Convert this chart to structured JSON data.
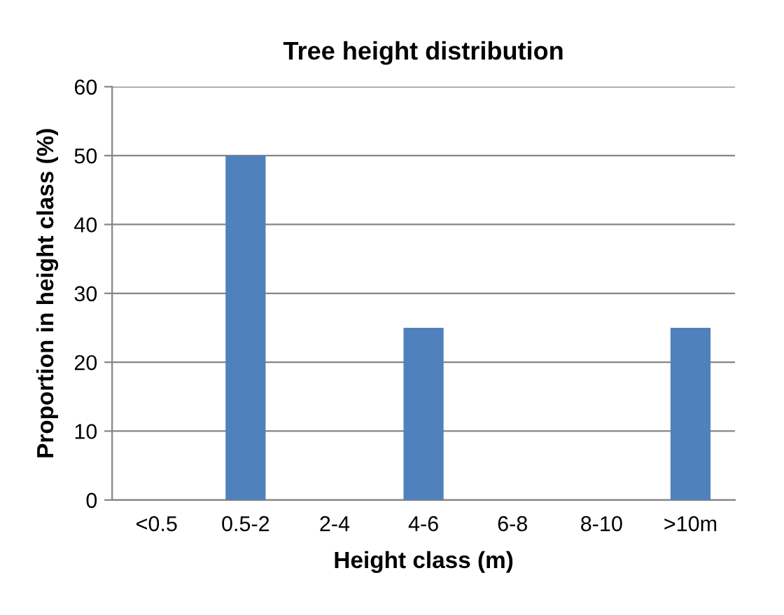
{
  "chart_data": {
    "type": "bar",
    "title": "Tree height distribution",
    "xlabel": "Height class (m)",
    "ylabel": "Proportion in height class (%)",
    "categories": [
      "<0.5",
      "0.5-2",
      "2-4",
      "4-6",
      "6-8",
      "8-10",
      ">10m"
    ],
    "values": [
      0,
      50,
      0,
      25,
      0,
      0,
      25
    ],
    "color": "#4f81bd",
    "ylim": [
      0,
      60
    ],
    "yticks": [
      0,
      10,
      20,
      30,
      40,
      50,
      60
    ],
    "grid": "y",
    "legend": false
  }
}
